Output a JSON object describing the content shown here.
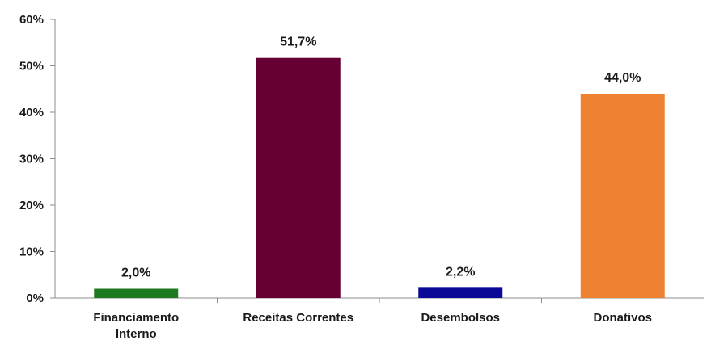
{
  "chart_data": {
    "type": "bar",
    "categories": [
      [
        "Financiamento",
        "Interno"
      ],
      [
        "Receitas Correntes"
      ],
      [
        "Desembolsos"
      ],
      [
        "Donativos"
      ]
    ],
    "values": [
      2.0,
      51.7,
      2.2,
      44.0
    ],
    "data_labels": [
      "2,0%",
      "51,7%",
      "2,2%",
      "44,0%"
    ],
    "colors": [
      "#1e7a1e",
      "#660033",
      "#0a0a96",
      "#ef8133"
    ],
    "ylim": [
      0,
      60
    ],
    "yticks": [
      0,
      10,
      20,
      30,
      40,
      50,
      60
    ],
    "ytick_labels": [
      "0%",
      "10%",
      "20%",
      "30%",
      "40%",
      "50%",
      "60%"
    ],
    "title": "",
    "xlabel": "",
    "ylabel": "",
    "grid": false,
    "legend": "none"
  }
}
